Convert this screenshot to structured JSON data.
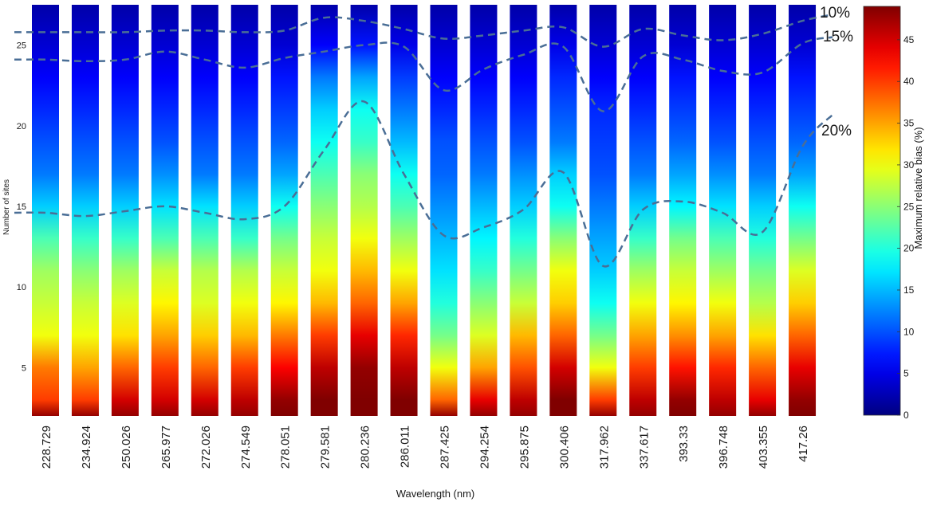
{
  "chart_data": {
    "type": "heatmap",
    "title": "",
    "xlabel": "Wavelength (nm)",
    "ylabel": "Number of sites",
    "colorbar_label": "Maximum relative bias (%)",
    "categories": [
      "228.729",
      "234.924",
      "250.026",
      "265.977",
      "272.026",
      "274.549",
      "278.051",
      "279.581",
      "280.236",
      "286.011",
      "287.425",
      "294.254",
      "295.875",
      "300.406",
      "317.962",
      "337.617",
      "393.33",
      "396.748",
      "403.355",
      "417.26"
    ],
    "y_ticks": [
      "5",
      "10",
      "15",
      "20",
      "25"
    ],
    "ylim": [
      2,
      27.5
    ],
    "colorbar_ticks": [
      "0",
      "5",
      "10",
      "15",
      "20",
      "25",
      "30",
      "35",
      "40",
      "45"
    ],
    "colorbar_range": [
      0,
      49
    ],
    "colormap": "jet",
    "colors": {
      "contour": "#4a6e96"
    },
    "contours": [
      {
        "label": "10%",
        "values": [
          25.8,
          25.8,
          25.8,
          25.9,
          25.9,
          25.8,
          25.9,
          26.7,
          26.5,
          26.0,
          25.4,
          25.6,
          25.9,
          26.1,
          24.9,
          26.0,
          25.6,
          25.3,
          25.7,
          26.5
        ]
      },
      {
        "label": "15%",
        "values": [
          24.1,
          24.0,
          24.1,
          24.6,
          24.1,
          23.6,
          24.2,
          24.6,
          25.0,
          24.9,
          22.2,
          23.5,
          24.4,
          24.9,
          20.9,
          24.3,
          24.1,
          23.4,
          23.3,
          25.1
        ]
      },
      {
        "label": "20%",
        "values": [
          14.6,
          14.4,
          14.7,
          15.0,
          14.6,
          14.2,
          15.0,
          18.5,
          21.5,
          17.0,
          13.2,
          13.7,
          14.8,
          17.1,
          11.3,
          14.8,
          15.3,
          14.6,
          13.4,
          18.7
        ]
      }
    ],
    "bias_profile": {
      "note_levels_y": [
        2,
        3,
        5,
        7,
        9,
        11,
        13,
        15,
        17,
        19,
        21,
        23,
        25,
        27.5
      ],
      "columns": [
        [
          48,
          40,
          37,
          30,
          28,
          26,
          22,
          16,
          12,
          10,
          8,
          6,
          4,
          2
        ],
        [
          48,
          40,
          35,
          30,
          28,
          25,
          21,
          16,
          12,
          10,
          8,
          6,
          4,
          2
        ],
        [
          48,
          45,
          38,
          32,
          29,
          26,
          21,
          16,
          12,
          10,
          8,
          6,
          4,
          2
        ],
        [
          48,
          45,
          40,
          35,
          31,
          28,
          22,
          17,
          13,
          10,
          8,
          6,
          4,
          2
        ],
        [
          48,
          45,
          38,
          33,
          29,
          27,
          22,
          17,
          12,
          10,
          8,
          6,
          4,
          2
        ],
        [
          48,
          46,
          40,
          34,
          30,
          27,
          21,
          16,
          12,
          10,
          8,
          6,
          4,
          2
        ],
        [
          49,
          48,
          43,
          37,
          31,
          28,
          24,
          19,
          14,
          11,
          9,
          7,
          4,
          2
        ],
        [
          49,
          49,
          46,
          40,
          34,
          30,
          28,
          25,
          22,
          19,
          16,
          12,
          6,
          2
        ],
        [
          49,
          49,
          48,
          44,
          38,
          34,
          30,
          27,
          25,
          21,
          19,
          14,
          7,
          2
        ],
        [
          49,
          49,
          46,
          41,
          35,
          30,
          26,
          22,
          19,
          15,
          12,
          9,
          5,
          2
        ],
        [
          48,
          38,
          30,
          24,
          20,
          17,
          15,
          13,
          11,
          10,
          8,
          6,
          4,
          2
        ],
        [
          48,
          44,
          35,
          29,
          25,
          21,
          18,
          15,
          12,
          10,
          8,
          6,
          4,
          2
        ],
        [
          48,
          46,
          39,
          34,
          28,
          24,
          20,
          16,
          13,
          10,
          8,
          6,
          4,
          2
        ],
        [
          49,
          49,
          45,
          38,
          33,
          30,
          25,
          19,
          16,
          12,
          10,
          8,
          5,
          2
        ],
        [
          48,
          40,
          30,
          24,
          19,
          16,
          14,
          12,
          10,
          9,
          8,
          6,
          4,
          2
        ],
        [
          48,
          46,
          40,
          35,
          30,
          26,
          21,
          16,
          12,
          10,
          8,
          6,
          4,
          2
        ],
        [
          49,
          48,
          42,
          36,
          31,
          28,
          24,
          18,
          14,
          11,
          9,
          7,
          4,
          2
        ],
        [
          48,
          46,
          41,
          35,
          30,
          26,
          22,
          17,
          13,
          10,
          8,
          6,
          4,
          2
        ],
        [
          48,
          44,
          38,
          32,
          27,
          24,
          20,
          16,
          12,
          10,
          8,
          6,
          4,
          2
        ],
        [
          49,
          48,
          44,
          38,
          33,
          29,
          24,
          19,
          14,
          11,
          9,
          7,
          4,
          2
        ]
      ]
    }
  }
}
